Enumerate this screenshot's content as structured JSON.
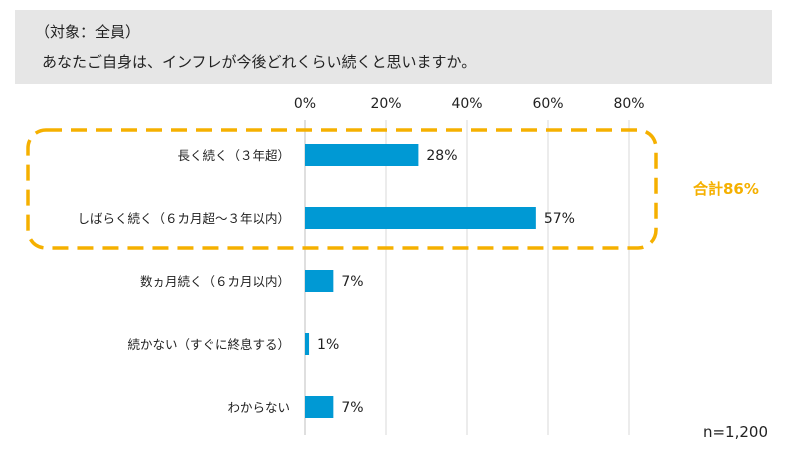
{
  "header": {
    "target": "（対象：全員）",
    "question": "あなたご自身は、インフレが今後どれくらい続くと思いますか。"
  },
  "chart_data": {
    "type": "bar",
    "orientation": "horizontal",
    "categories": [
      "長く続く（３年超）",
      "しばらく続く（６カ月超～３年以内）",
      "数ヵ月続く（６カ月以内）",
      "続かない（すぐに終息する）",
      "わからない"
    ],
    "values": [
      28,
      57,
      7,
      1,
      7
    ],
    "value_labels": [
      "28%",
      "57%",
      "7%",
      "1%",
      "7%"
    ],
    "xlim": [
      0,
      80
    ],
    "ticks": [
      0,
      20,
      40,
      60,
      80
    ],
    "tick_labels": [
      "0%",
      "20%",
      "40%",
      "60%",
      "80%"
    ],
    "grid": true,
    "bar_color": "#0099d4",
    "highlight": {
      "categories": [
        0,
        1
      ],
      "label": "合計86%",
      "color": "#f5b000"
    },
    "note": "n=1,200"
  }
}
